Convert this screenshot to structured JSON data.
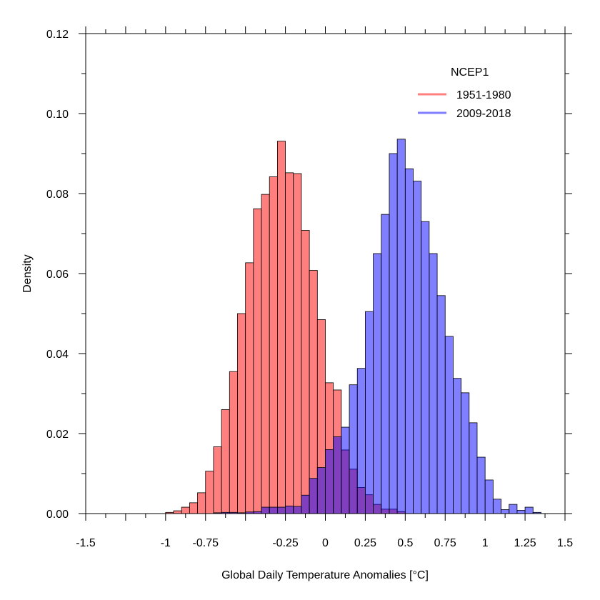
{
  "chart_data": {
    "type": "bar",
    "xlabel": "Global Daily Temperature Anomalies [°C]",
    "ylabel": "Density",
    "xlim": [
      -1.5,
      1.5
    ],
    "ylim": [
      0,
      0.12
    ],
    "x_tick_labels": [
      "-1.5",
      "-1",
      "-0.75",
      "-0.25",
      "0",
      "0.25",
      "0.5",
      "0.75",
      "1",
      "1.25",
      "1.5"
    ],
    "y_tick_labels": [
      "0.00",
      "0.02",
      "0.04",
      "0.06",
      "0.08",
      "0.10",
      "0.12"
    ],
    "bin_width": 0.05,
    "legend": {
      "title": "NCEP1",
      "position": "top-right",
      "entries": [
        "1951-1980",
        "2009-2018"
      ]
    },
    "series": [
      {
        "name": "1951-1980",
        "color": "#ff7f7f",
        "bins": [
          {
            "x": -1.0,
            "y": 0.0003
          },
          {
            "x": -0.95,
            "y": 0.0007
          },
          {
            "x": -0.9,
            "y": 0.0016
          },
          {
            "x": -0.85,
            "y": 0.0027
          },
          {
            "x": -0.8,
            "y": 0.0052
          },
          {
            "x": -0.75,
            "y": 0.0106
          },
          {
            "x": -0.7,
            "y": 0.0167
          },
          {
            "x": -0.65,
            "y": 0.026
          },
          {
            "x": -0.6,
            "y": 0.0355
          },
          {
            "x": -0.55,
            "y": 0.05
          },
          {
            "x": -0.5,
            "y": 0.0627
          },
          {
            "x": -0.45,
            "y": 0.0762
          },
          {
            "x": -0.4,
            "y": 0.0798
          },
          {
            "x": -0.35,
            "y": 0.0842
          },
          {
            "x": -0.3,
            "y": 0.0931
          },
          {
            "x": -0.25,
            "y": 0.0852
          },
          {
            "x": -0.2,
            "y": 0.085
          },
          {
            "x": -0.15,
            "y": 0.0708
          },
          {
            "x": -0.1,
            "y": 0.0608
          },
          {
            "x": -0.05,
            "y": 0.0485
          },
          {
            "x": 0.0,
            "y": 0.0327
          },
          {
            "x": 0.05,
            "y": 0.0309
          },
          {
            "x": 0.1,
            "y": 0.0159
          },
          {
            "x": 0.15,
            "y": 0.0111
          },
          {
            "x": 0.2,
            "y": 0.0065
          },
          {
            "x": 0.25,
            "y": 0.0047
          },
          {
            "x": 0.3,
            "y": 0.0023
          },
          {
            "x": 0.35,
            "y": 0.0011
          },
          {
            "x": 0.4,
            "y": 0.0011
          },
          {
            "x": 0.45,
            "y": 0.0005
          }
        ]
      },
      {
        "name": "2009-2018",
        "color": "#7f7fff",
        "bins": [
          {
            "x": -0.7,
            "y": 0.0002
          },
          {
            "x": -0.65,
            "y": 0.0003
          },
          {
            "x": -0.6,
            "y": 0.0003
          },
          {
            "x": -0.55,
            "y": 0.0002
          },
          {
            "x": -0.5,
            "y": 0.0004
          },
          {
            "x": -0.45,
            "y": 0.0005
          },
          {
            "x": -0.4,
            "y": 0.0016
          },
          {
            "x": -0.35,
            "y": 0.0016
          },
          {
            "x": -0.3,
            "y": 0.0016
          },
          {
            "x": -0.25,
            "y": 0.0019
          },
          {
            "x": -0.2,
            "y": 0.0018
          },
          {
            "x": -0.15,
            "y": 0.0046
          },
          {
            "x": -0.1,
            "y": 0.0088
          },
          {
            "x": -0.05,
            "y": 0.0115
          },
          {
            "x": 0.0,
            "y": 0.016
          },
          {
            "x": 0.05,
            "y": 0.0192
          },
          {
            "x": 0.1,
            "y": 0.0216
          },
          {
            "x": 0.15,
            "y": 0.0322
          },
          {
            "x": 0.2,
            "y": 0.0363
          },
          {
            "x": 0.25,
            "y": 0.0505
          },
          {
            "x": 0.3,
            "y": 0.065
          },
          {
            "x": 0.35,
            "y": 0.0748
          },
          {
            "x": 0.4,
            "y": 0.09
          },
          {
            "x": 0.45,
            "y": 0.0936
          },
          {
            "x": 0.5,
            "y": 0.0862
          },
          {
            "x": 0.55,
            "y": 0.0831
          },
          {
            "x": 0.6,
            "y": 0.073
          },
          {
            "x": 0.65,
            "y": 0.065
          },
          {
            "x": 0.7,
            "y": 0.0545
          },
          {
            "x": 0.75,
            "y": 0.0443
          },
          {
            "x": 0.8,
            "y": 0.0338
          },
          {
            "x": 0.85,
            "y": 0.0302
          },
          {
            "x": 0.9,
            "y": 0.0227
          },
          {
            "x": 0.95,
            "y": 0.0141
          },
          {
            "x": 1.0,
            "y": 0.0084
          },
          {
            "x": 1.05,
            "y": 0.0036
          },
          {
            "x": 1.1,
            "y": 0.001
          },
          {
            "x": 1.15,
            "y": 0.0023
          },
          {
            "x": 1.2,
            "y": 0.0008
          },
          {
            "x": 1.25,
            "y": 0.0016
          },
          {
            "x": 1.3,
            "y": 0.0003
          }
        ]
      }
    ]
  }
}
